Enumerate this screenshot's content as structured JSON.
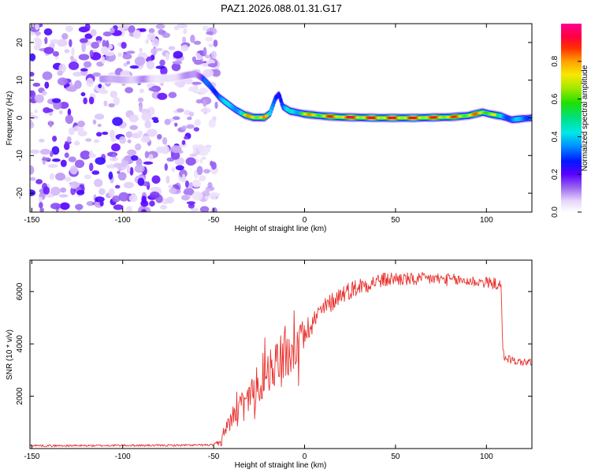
{
  "title": "PAZ1.2026.088.01.31.G17",
  "chart_data": [
    {
      "type": "heatmap",
      "xlabel": "Height of straight line (km)",
      "ylabel": "Frequency (Hz)",
      "xlim": [
        -151,
        125
      ],
      "ylim": [
        -25,
        25
      ],
      "xticks": [
        -150,
        -100,
        -50,
        0,
        50,
        100
      ],
      "xtick_labels": [
        "-150",
        "-100",
        "-50",
        "0",
        "50",
        "100"
      ],
      "yticks": [
        20,
        10,
        0,
        -10,
        -20
      ],
      "ytick_labels": [
        "20",
        "10",
        "0",
        "-10",
        "-20"
      ],
      "colorbar": {
        "label": "Normalized spectral amplitude",
        "range": [
          0,
          1
        ],
        "ticks": [
          0,
          0.2,
          0.4,
          0.6,
          0.8
        ],
        "tick_labels": [
          "0.0",
          "0.2",
          "0.4",
          "0.6",
          "0.8"
        ]
      },
      "noise_region": {
        "x_range": [
          -151,
          -48
        ],
        "y_range": [
          -25,
          25
        ]
      },
      "ridge": [
        {
          "x": -112,
          "y": 10.3,
          "amp": 0.25
        },
        {
          "x": -105,
          "y": 10.3,
          "amp": 0.3
        },
        {
          "x": -100,
          "y": 10.1,
          "amp": 0.2
        },
        {
          "x": -95,
          "y": 10.1,
          "amp": 0.22
        },
        {
          "x": -88,
          "y": 10.3,
          "amp": 0.28
        },
        {
          "x": -80,
          "y": 10.4,
          "amp": 0.1
        },
        {
          "x": -72,
          "y": 10.6,
          "amp": 0.15
        },
        {
          "x": -66,
          "y": 11.2,
          "amp": 0.25
        },
        {
          "x": -60,
          "y": 11.7,
          "amp": 0.35
        },
        {
          "x": -56,
          "y": 10.5,
          "amp": 0.45
        },
        {
          "x": -52,
          "y": 8.5,
          "amp": 0.5
        },
        {
          "x": -47,
          "y": 5.5,
          "amp": 0.6
        },
        {
          "x": -43,
          "y": 4.0,
          "amp": 0.6
        },
        {
          "x": -38,
          "y": 2.2,
          "amp": 0.7
        },
        {
          "x": -33,
          "y": 0.8,
          "amp": 0.75
        },
        {
          "x": -28,
          "y": 0.1,
          "amp": 0.9
        },
        {
          "x": -22,
          "y": 0.1,
          "amp": 0.9
        },
        {
          "x": -19,
          "y": 1.2,
          "amp": 0.6
        },
        {
          "x": -16,
          "y": 5.2,
          "amp": 0.55
        },
        {
          "x": -14,
          "y": 6.3,
          "amp": 0.5
        },
        {
          "x": -12,
          "y": 3.0,
          "amp": 0.55
        },
        {
          "x": -8,
          "y": 1.8,
          "amp": 0.65
        },
        {
          "x": 0,
          "y": 1.0,
          "amp": 0.8
        },
        {
          "x": 10,
          "y": 0.5,
          "amp": 0.85
        },
        {
          "x": 20,
          "y": 0.2,
          "amp": 0.95
        },
        {
          "x": 40,
          "y": 0.0,
          "amp": 0.95
        },
        {
          "x": 60,
          "y": 0.0,
          "amp": 0.95
        },
        {
          "x": 80,
          "y": 0.2,
          "amp": 0.9
        },
        {
          "x": 90,
          "y": 0.6,
          "amp": 0.85
        },
        {
          "x": 98,
          "y": 1.5,
          "amp": 0.85
        },
        {
          "x": 102,
          "y": 1.0,
          "amp": 0.8
        },
        {
          "x": 108,
          "y": 0.5,
          "amp": 0.7
        },
        {
          "x": 114,
          "y": -0.5,
          "amp": 0.55
        },
        {
          "x": 120,
          "y": -0.2,
          "amp": 0.6
        },
        {
          "x": 125,
          "y": 0.0,
          "amp": 0.6
        }
      ]
    },
    {
      "type": "line",
      "xlabel": "Height of straight line (km)",
      "ylabel": "SNR (10 * v/v)",
      "xlim": [
        -151,
        125
      ],
      "ylim": [
        0,
        7200
      ],
      "xticks": [
        -150,
        -100,
        -50,
        0,
        50,
        100
      ],
      "xtick_labels": [
        "-150",
        "-100",
        "-50",
        "0",
        "50",
        "100"
      ],
      "yticks": [
        2000,
        4000,
        6000
      ],
      "ytick_labels": [
        "2000",
        "4000",
        "6000"
      ],
      "color": "#e8322e",
      "series": [
        {
          "name": "SNR",
          "x": [
            -151,
            -140,
            -120,
            -100,
            -80,
            -60,
            -50,
            -46,
            -44,
            -40,
            -35,
            -30,
            -25,
            -20,
            -15,
            -12,
            -10,
            -5,
            0,
            5,
            10,
            20,
            30,
            40,
            50,
            60,
            70,
            80,
            90,
            100,
            105,
            108,
            109,
            110,
            115,
            120,
            125
          ],
          "y": [
            120,
            110,
            110,
            120,
            120,
            130,
            140,
            200,
            800,
            1200,
            1700,
            2000,
            2500,
            3000,
            3400,
            3600,
            3400,
            3900,
            4400,
            4900,
            5300,
            5900,
            6200,
            6400,
            6500,
            6450,
            6500,
            6450,
            6400,
            6350,
            6300,
            6200,
            3700,
            3500,
            3350,
            3300,
            3300
          ],
          "noise": [
            40,
            40,
            40,
            40,
            40,
            40,
            40,
            200,
            250,
            350,
            450,
            600,
            800,
            900,
            1100,
            1300,
            1000,
            700,
            550,
            450,
            400,
            350,
            350,
            300,
            280,
            260,
            250,
            240,
            230,
            220,
            220,
            220,
            180,
            180,
            150,
            150,
            150
          ]
        }
      ]
    }
  ]
}
